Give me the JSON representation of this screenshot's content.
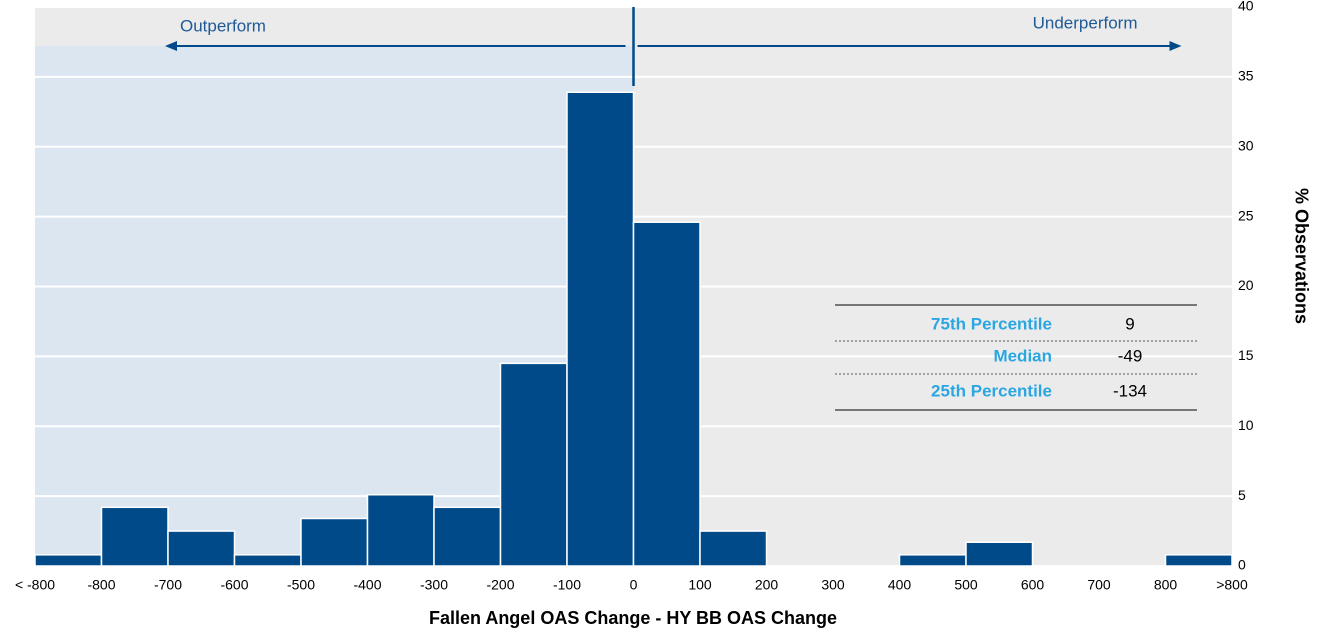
{
  "chart_data": {
    "type": "histogram",
    "x_label": "Fallen Angel OAS Change - HY BB OAS Change",
    "y_label": "% Observations",
    "annotations": [
      "Outperform",
      "Underperform"
    ],
    "divider": 0,
    "bins": [
      -900,
      -800,
      -700,
      -600,
      -500,
      -400,
      -300,
      -200,
      -100,
      0,
      100,
      200,
      300,
      400,
      500,
      600,
      700,
      800,
      900
    ],
    "values": [
      0.8,
      4.2,
      2.5,
      0.8,
      3.4,
      5.1,
      4.2,
      14.5,
      33.9,
      24.6,
      2.5,
      0,
      0,
      0.8,
      1.7,
      0,
      0,
      0.8
    ],
    "color": "#004a8a",
    "xlim": [
      -900,
      900
    ],
    "xticks": [
      {
        "value": -900,
        "label": "< -800"
      },
      -800,
      -700,
      -600,
      -500,
      -400,
      -300,
      -200,
      -100,
      0,
      100,
      200,
      300,
      400,
      500,
      600,
      700,
      800,
      {
        "value": 900,
        "label": ">800"
      }
    ],
    "ylim": [
      0,
      40
    ],
    "yticks": [
      0,
      5,
      10,
      15,
      20,
      25,
      30,
      35,
      40
    ],
    "grid": true,
    "stats_table": [
      [
        "75th Percentile",
        9
      ],
      [
        "Median",
        -49
      ],
      [
        "25th Percentile",
        -134
      ]
    ]
  }
}
